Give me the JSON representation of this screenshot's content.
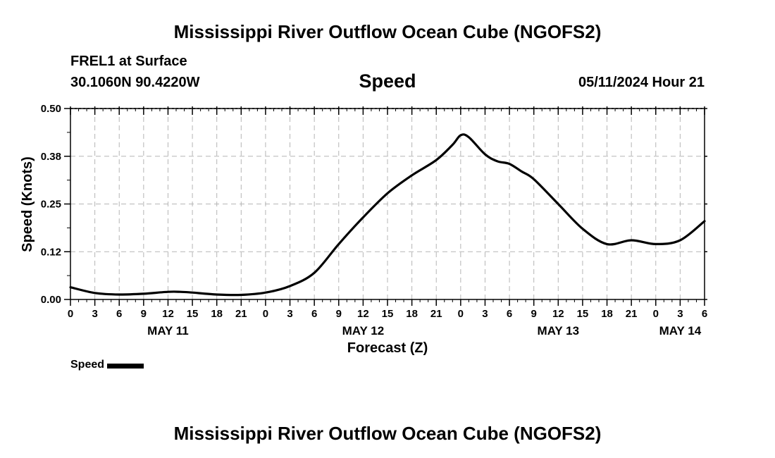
{
  "header": {
    "title": "Mississippi River Outflow Ocean Cube (NGOFS2)",
    "station": "FREL1 at Surface",
    "coords": "30.1060N  90.4220W",
    "timestamp": "05/11/2024 Hour 21"
  },
  "footer": {
    "title": "Mississippi River Outflow Ocean Cube (NGOFS2)"
  },
  "legend": {
    "label": "Speed",
    "color": "#000000"
  },
  "chart_data": {
    "type": "line",
    "title": "Speed",
    "xlabel": "Forecast (Z)",
    "ylabel": "Speed (Knots)",
    "ylim": [
      0,
      0.5
    ],
    "xlim": [
      0,
      78
    ],
    "y_ticks": [
      0,
      0.125,
      0.25,
      0.375,
      0.5
    ],
    "y_tick_labels": [
      "0.00",
      "0.12",
      "0.25",
      "0.38",
      "0.50"
    ],
    "x_ticks": [
      0,
      3,
      6,
      9,
      12,
      15,
      18,
      21,
      24,
      27,
      30,
      33,
      36,
      39,
      42,
      45,
      48,
      51,
      54,
      57,
      60,
      63,
      66,
      69,
      72,
      75,
      78
    ],
    "x_tick_labels": [
      "0",
      "3",
      "6",
      "9",
      "12",
      "15",
      "18",
      "21",
      "0",
      "3",
      "6",
      "9",
      "12",
      "15",
      "18",
      "21",
      "0",
      "3",
      "6",
      "9",
      "12",
      "15",
      "18",
      "21",
      "0",
      "3",
      "6"
    ],
    "date_labels": [
      {
        "x": 12,
        "label": "MAY 11"
      },
      {
        "x": 36,
        "label": "MAY 12"
      },
      {
        "x": 60,
        "label": "MAY 13"
      },
      {
        "x": 75,
        "label": "MAY 14"
      }
    ],
    "grid": true,
    "series": [
      {
        "name": "Speed",
        "x": [
          0,
          3,
          6,
          9,
          12,
          13.5,
          15,
          18,
          21,
          24,
          27,
          30,
          33,
          36,
          39,
          42,
          45,
          47,
          48,
          49,
          51,
          52.5,
          54,
          55.5,
          57,
          60,
          63,
          66,
          69,
          72,
          75,
          78
        ],
        "values": [
          0.032,
          0.017,
          0.013,
          0.015,
          0.02,
          0.02,
          0.018,
          0.013,
          0.012,
          0.018,
          0.035,
          0.07,
          0.145,
          0.215,
          0.278,
          0.325,
          0.365,
          0.405,
          0.43,
          0.425,
          0.38,
          0.362,
          0.355,
          0.335,
          0.315,
          0.25,
          0.185,
          0.145,
          0.155,
          0.145,
          0.155,
          0.205
        ]
      }
    ]
  }
}
